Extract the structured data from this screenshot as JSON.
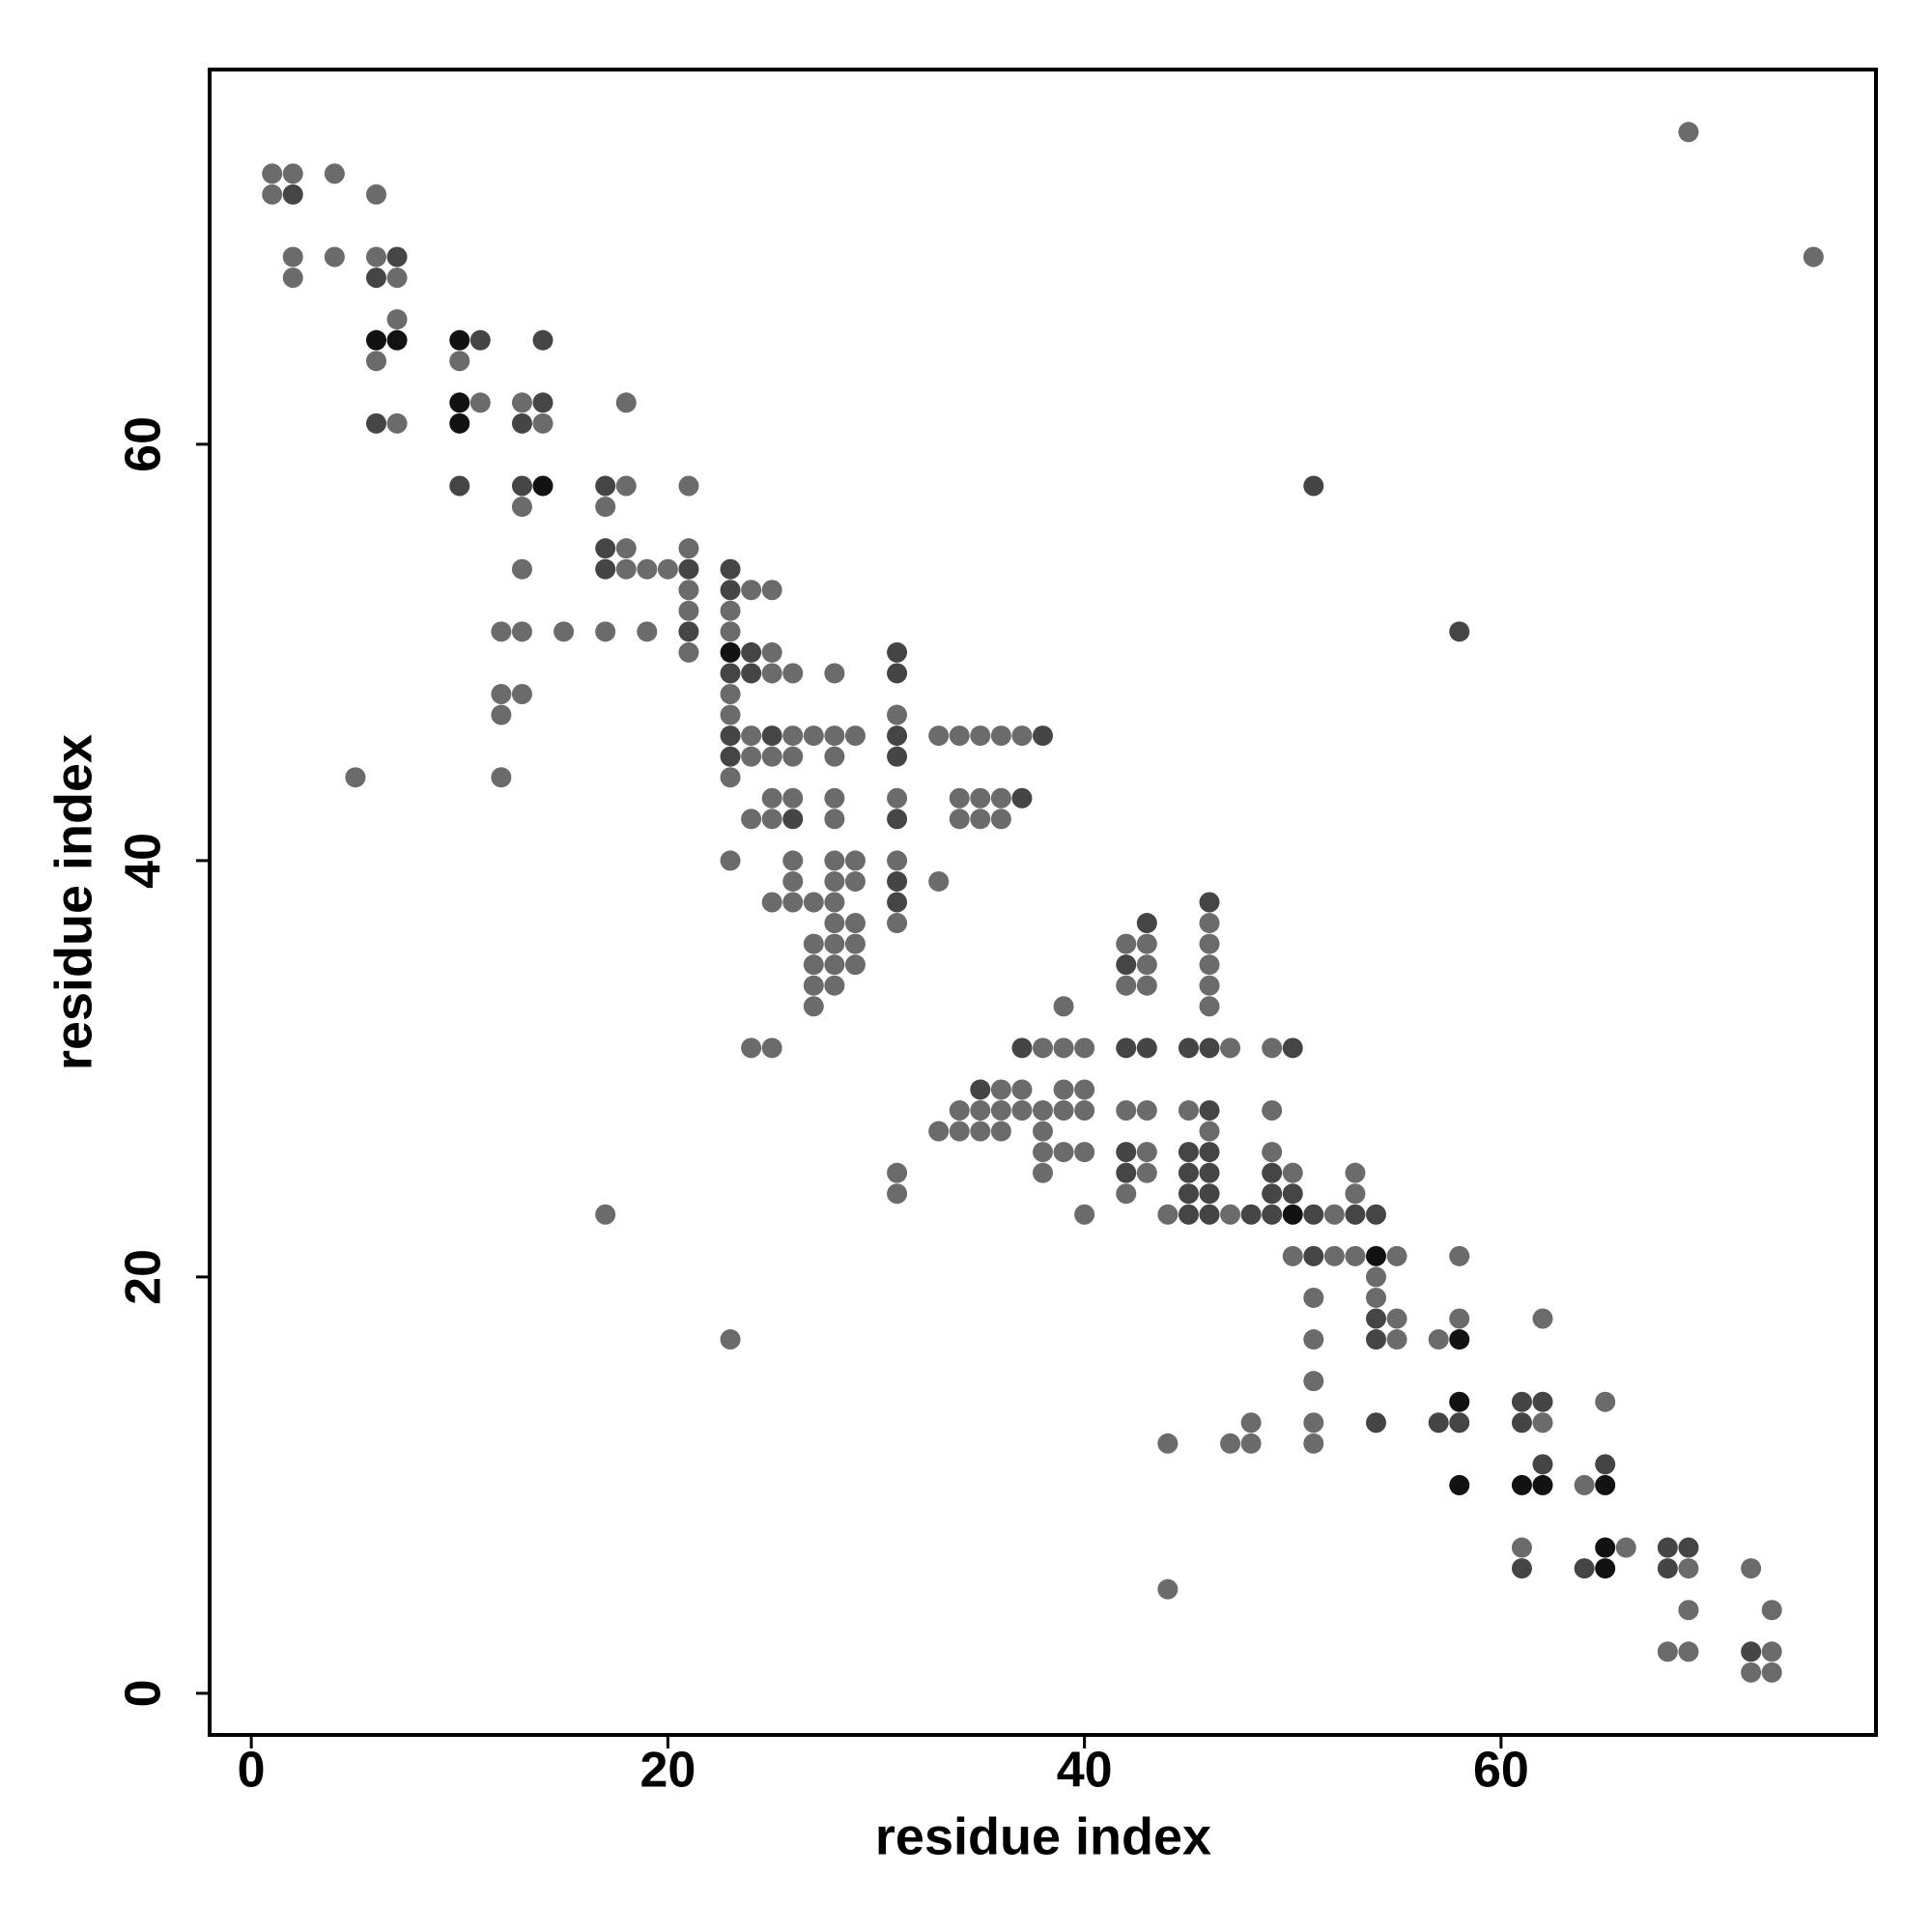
{
  "chart_data": {
    "type": "scatter",
    "xlabel": "residue index",
    "ylabel": "residue index",
    "xlim": [
      -2,
      78
    ],
    "ylim": [
      -2,
      78
    ],
    "xticks": [
      0,
      20,
      40,
      60
    ],
    "yticks": [
      0,
      20,
      40,
      60
    ],
    "grid": false,
    "series": [
      {
        "color": "#6b6b6b",
        "x": [
          1,
          2,
          4,
          1,
          6,
          69,
          2,
          4,
          6,
          75,
          2,
          7,
          7,
          6,
          10,
          11,
          13,
          18,
          7,
          14,
          18,
          21,
          13,
          17,
          18,
          21,
          13,
          18,
          19,
          20,
          21,
          24,
          25,
          21,
          23,
          12,
          13,
          15,
          17,
          19,
          23,
          21,
          25,
          25,
          26,
          28,
          12,
          13,
          23,
          12,
          23,
          31,
          24,
          26,
          27,
          28,
          29,
          33,
          34,
          35,
          36,
          37,
          24,
          25,
          26,
          28,
          5,
          12,
          23,
          25,
          26,
          28,
          31,
          34,
          35,
          36,
          24,
          25,
          28,
          34,
          35,
          36,
          23,
          26,
          28,
          29,
          31,
          26,
          28,
          29,
          33,
          25,
          26,
          27,
          28,
          28,
          29,
          31,
          46,
          27,
          28,
          29,
          42,
          43,
          46,
          27,
          28,
          29,
          43,
          46,
          27,
          28,
          42,
          43,
          46,
          27,
          39,
          46,
          24,
          25,
          38,
          39,
          40,
          47,
          49,
          36,
          37,
          39,
          40,
          34,
          35,
          36,
          37,
          38,
          39,
          40,
          42,
          43,
          45,
          49,
          33,
          34,
          35,
          36,
          38,
          46,
          38,
          39,
          40,
          43,
          49,
          31,
          38,
          43,
          50,
          53,
          31,
          42,
          53,
          17,
          40,
          44,
          47,
          52,
          50,
          52,
          53,
          55,
          58,
          54,
          51,
          54,
          55,
          58,
          62,
          23,
          51,
          55,
          57,
          51,
          65,
          48,
          51,
          62,
          44,
          47,
          48,
          51,
          64,
          61,
          66,
          69,
          72,
          44,
          69,
          73,
          68,
          69,
          73,
          72,
          73
        ],
        "y": [
          73,
          73,
          73,
          72,
          72,
          75,
          69,
          69,
          69,
          69,
          68,
          68,
          66,
          64,
          64,
          62,
          62,
          62,
          61,
          61,
          58,
          58,
          57,
          57,
          55,
          55,
          54,
          54,
          54,
          54,
          53,
          53,
          53,
          52,
          52,
          51,
          51,
          51,
          51,
          51,
          51,
          50,
          50,
          49,
          49,
          49,
          48,
          48,
          48,
          47,
          47,
          47,
          46,
          46,
          46,
          46,
          46,
          46,
          46,
          46,
          46,
          46,
          45,
          45,
          45,
          45,
          44,
          44,
          44,
          43,
          43,
          43,
          43,
          43,
          43,
          43,
          42,
          42,
          42,
          42,
          42,
          42,
          40,
          40,
          40,
          40,
          40,
          39,
          39,
          39,
          39,
          38,
          38,
          38,
          38,
          37,
          37,
          37,
          37,
          36,
          36,
          36,
          36,
          36,
          36,
          35,
          35,
          35,
          35,
          35,
          34,
          34,
          34,
          34,
          34,
          33,
          33,
          33,
          31,
          31,
          31,
          31,
          31,
          31,
          31,
          29,
          29,
          29,
          29,
          28,
          28,
          28,
          28,
          28,
          28,
          28,
          28,
          28,
          28,
          28,
          27,
          27,
          27,
          27,
          27,
          27,
          26,
          26,
          26,
          26,
          26,
          25,
          25,
          25,
          25,
          25,
          24,
          24,
          24,
          23,
          23,
          23,
          23,
          23,
          21,
          21,
          21,
          21,
          21,
          20,
          19,
          19,
          18,
          18,
          18,
          17,
          17,
          17,
          17,
          15,
          14,
          13,
          13,
          13,
          12,
          12,
          12,
          12,
          10,
          7,
          7,
          6,
          6,
          5,
          4,
          4,
          2,
          2,
          2,
          1,
          1
        ]
      },
      {
        "color": "#454545",
        "x": [
          2,
          7,
          6,
          11,
          14,
          14,
          6,
          13,
          10,
          13,
          17,
          51,
          17,
          17,
          21,
          23,
          23,
          21,
          58,
          24,
          31,
          23,
          24,
          31,
          23,
          25,
          31,
          38,
          23,
          31,
          37,
          26,
          31,
          31,
          31,
          46,
          43,
          42,
          37,
          42,
          43,
          45,
          46,
          50,
          35,
          46,
          42,
          45,
          46,
          42,
          45,
          46,
          49,
          45,
          46,
          49,
          50,
          45,
          46,
          48,
          49,
          51,
          53,
          54,
          51,
          54,
          54,
          61,
          62,
          54,
          57,
          58,
          61,
          62,
          65,
          68,
          69,
          61,
          64,
          68,
          72
        ],
        "y": [
          72,
          69,
          68,
          65,
          65,
          62,
          61,
          61,
          58,
          58,
          58,
          58,
          55,
          54,
          54,
          54,
          53,
          51,
          51,
          50,
          50,
          49,
          49,
          49,
          46,
          46,
          46,
          46,
          45,
          45,
          43,
          42,
          42,
          39,
          38,
          38,
          37,
          35,
          31,
          31,
          31,
          31,
          31,
          31,
          29,
          28,
          26,
          26,
          26,
          25,
          25,
          25,
          25,
          24,
          24,
          24,
          24,
          23,
          23,
          23,
          23,
          23,
          23,
          23,
          21,
          18,
          17,
          14,
          14,
          13,
          13,
          13,
          13,
          11,
          11,
          7,
          7,
          6,
          6,
          6,
          2
        ]
      },
      {
        "color": "#121212",
        "x": [
          6,
          7,
          10,
          10,
          10,
          14,
          23,
          50,
          54,
          58,
          58,
          58,
          61,
          62,
          65,
          65,
          65
        ],
        "y": [
          65,
          65,
          65,
          62,
          61,
          58,
          50,
          23,
          21,
          17,
          14,
          10,
          10,
          10,
          10,
          7,
          6
        ]
      }
    ]
  }
}
